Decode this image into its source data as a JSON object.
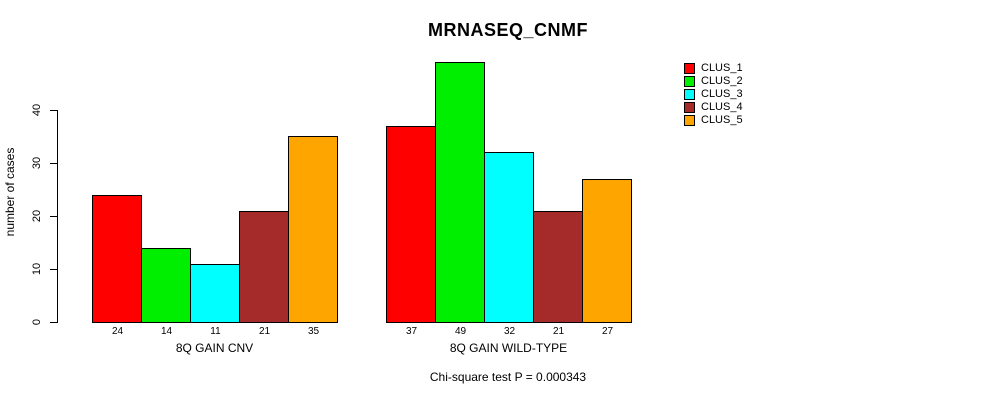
{
  "chart_data": {
    "type": "bar",
    "title": "MRNASEQ_CNMF",
    "ylabel": "number of cases",
    "ylim": [
      0,
      40
    ],
    "yticks": [
      0,
      10,
      20,
      30,
      40
    ],
    "categories": [
      "8Q GAIN CNV",
      "8Q GAIN WILD-TYPE"
    ],
    "groups": [
      {
        "label": "8Q GAIN CNV",
        "values": [
          24,
          14,
          11,
          21,
          35
        ]
      },
      {
        "label": "8Q GAIN WILD-TYPE",
        "values": [
          37,
          49,
          32,
          21,
          27
        ]
      }
    ],
    "series": [
      {
        "name": "CLUS_1",
        "color": "#ff0000"
      },
      {
        "name": "CLUS_2",
        "color": "#00ee00"
      },
      {
        "name": "CLUS_3",
        "color": "#00ffff"
      },
      {
        "name": "CLUS_4",
        "color": "#a52a2a"
      },
      {
        "name": "CLUS_5",
        "color": "#ffa500"
      }
    ],
    "legend_position": "right",
    "grid": false,
    "bar_value_labels_shown": true,
    "annotation": "Chi-square test P = 0.000343"
  }
}
